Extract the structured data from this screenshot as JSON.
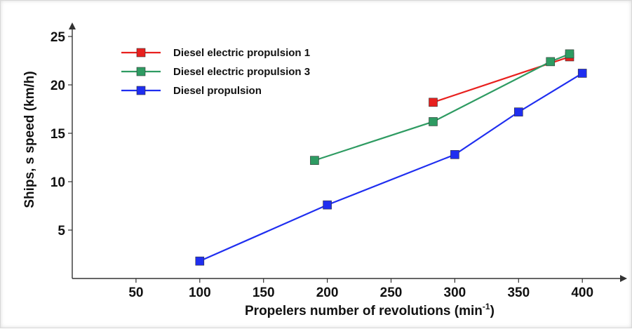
{
  "chart_data": {
    "type": "line",
    "xlabel_main": "Propelers number of revolutions  (min",
    "xlabel_sup": "-1",
    "xlabel_end": ")",
    "ylabel": "Ships, s speed (km/h)",
    "xlim": [
      0,
      420
    ],
    "ylim": [
      0,
      26
    ],
    "x_ticks": [
      50,
      100,
      150,
      200,
      250,
      300,
      350,
      400
    ],
    "y_ticks": [
      5,
      10,
      15,
      20,
      25
    ],
    "legend_position": "top-left",
    "grid": false,
    "series": [
      {
        "name": "Diesel electric propulsion 1",
        "color": "#e8201e",
        "x": [
          283,
          390
        ],
        "y": [
          18.2,
          22.9
        ]
      },
      {
        "name": "Diesel electric propulsion 3",
        "color": "#2e9b62",
        "x": [
          190,
          283,
          375,
          390
        ],
        "y": [
          12.2,
          16.2,
          22.4,
          23.2
        ]
      },
      {
        "name": "Diesel propulsion",
        "color": "#1f2ef0",
        "x": [
          100,
          200,
          300,
          350,
          400
        ],
        "y": [
          1.8,
          7.6,
          12.8,
          17.2,
          21.2
        ]
      }
    ]
  }
}
